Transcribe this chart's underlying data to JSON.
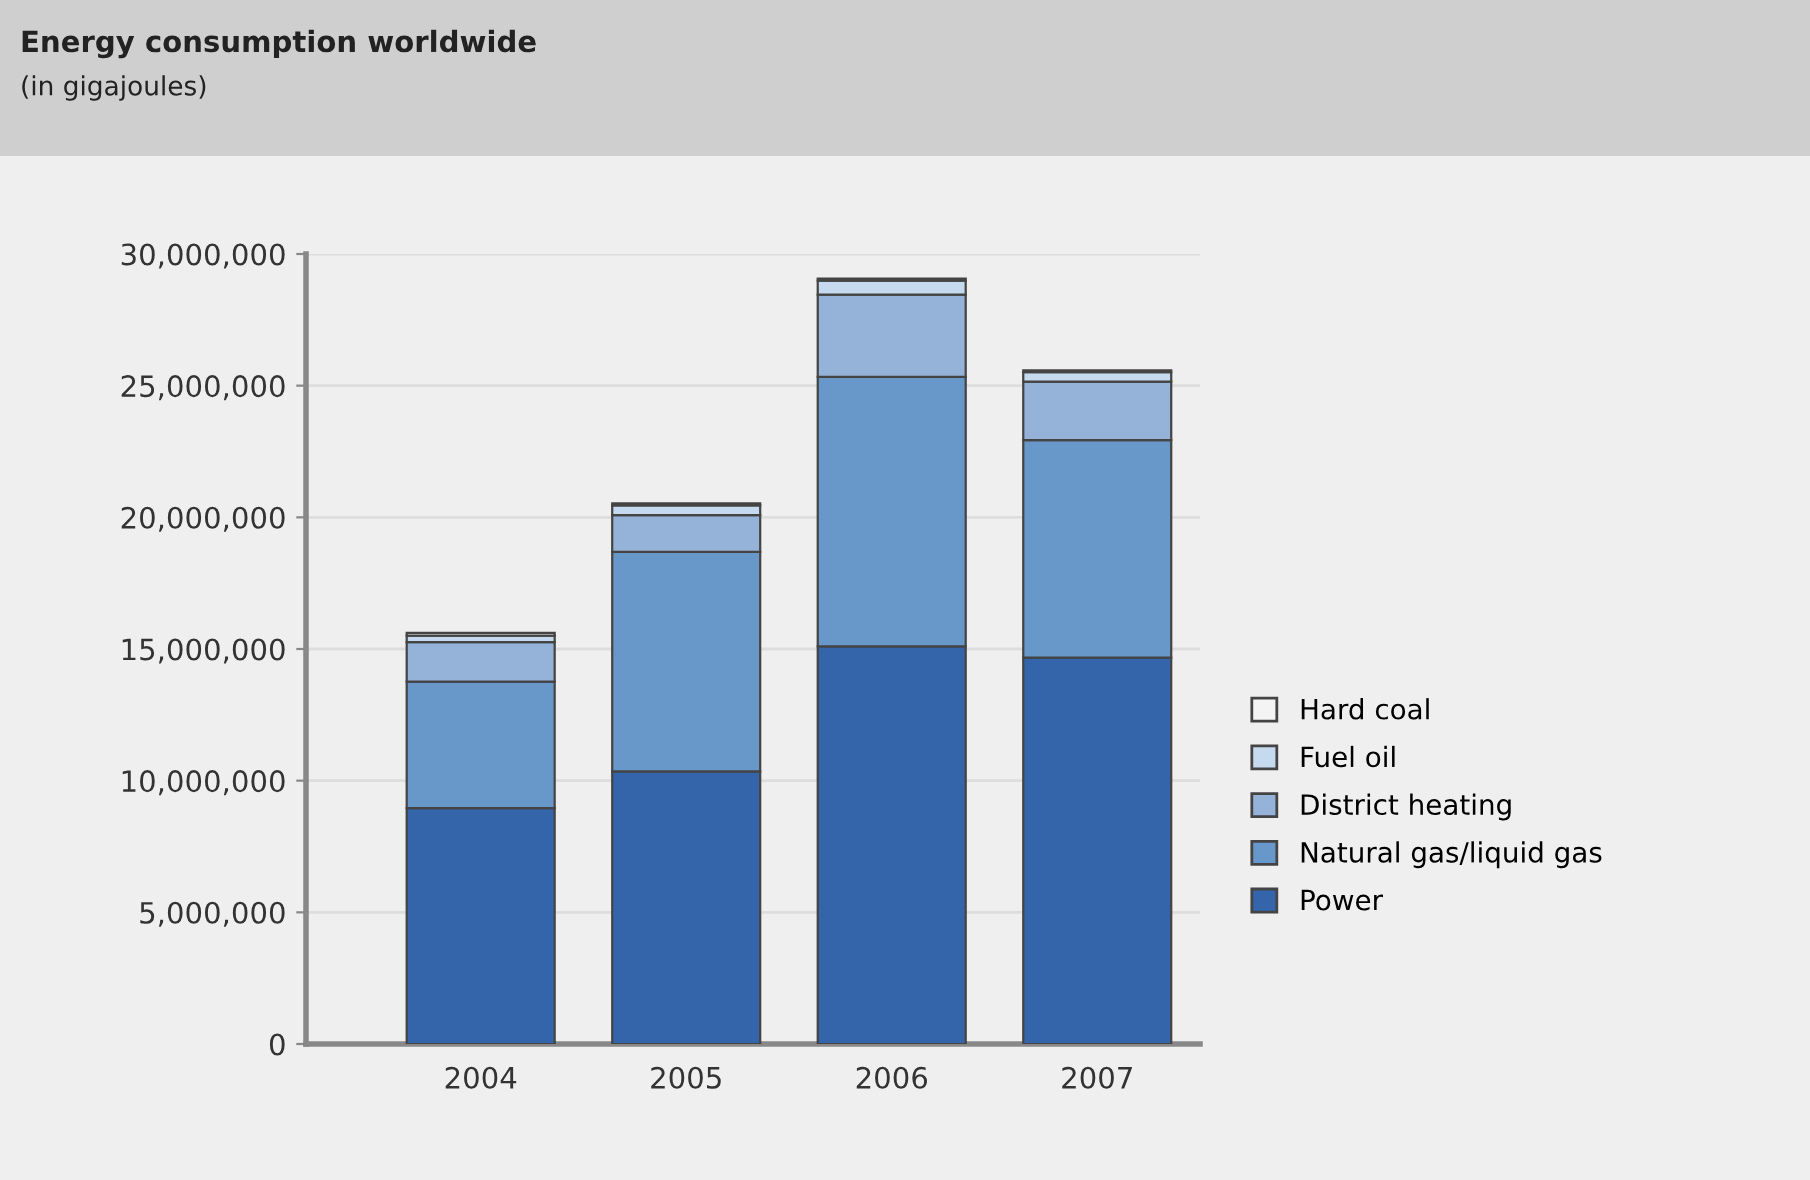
{
  "chart_data": {
    "type": "bar",
    "title": "Energy consumption worldwide",
    "subtitle": "(in gigajoules)",
    "categories": [
      "2004",
      "2005",
      "2006",
      "2007"
    ],
    "stacked": true,
    "series": [
      {
        "name": "Power",
        "color": "#3465aa",
        "values": [
          8960000,
          10350000,
          15100000,
          14670000
        ]
      },
      {
        "name": "Natural gas/liquid gas",
        "color": "#6897c9",
        "values": [
          4800000,
          8340000,
          10230000,
          8260000
        ]
      },
      {
        "name": "District heating",
        "color": "#95b3d9",
        "values": [
          1500000,
          1390000,
          3130000,
          2220000
        ]
      },
      {
        "name": "Fuel oil",
        "color": "#c5d9ef",
        "values": [
          250000,
          370000,
          530000,
          360000
        ]
      },
      {
        "name": "Hard coal",
        "color": "#f4f4f4",
        "values": [
          100000,
          80000,
          80000,
          70000
        ]
      }
    ],
    "ylim": [
      0,
      30000000
    ],
    "yticks": [
      0,
      {
        "value": 5000000,
        "label": "5,000,000"
      },
      {
        "value": 10000000,
        "label": "10,000,000"
      },
      {
        "value": 15000000,
        "label": "15,000,000"
      },
      {
        "value": 20000000,
        "label": "20,000,000"
      },
      {
        "value": 25000000,
        "label": "25,000,000"
      },
      {
        "value": 30000000,
        "label": "30,000,000"
      }
    ],
    "grid": "y",
    "legend": "right"
  }
}
